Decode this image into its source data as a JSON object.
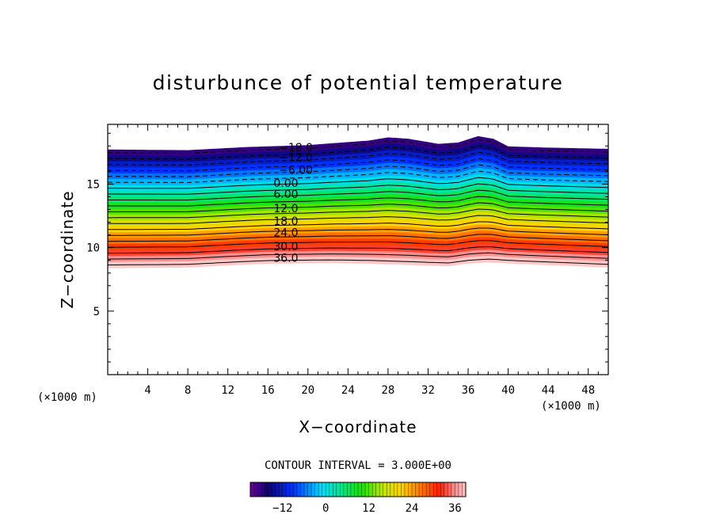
{
  "chart_data": {
    "type": "contour",
    "title": "disturbunce of potential temperature",
    "xlabel": "X−coordinate",
    "ylabel": "Z−coordinate",
    "x_unit_label": "(×1000 m)",
    "y_unit_label": "(×1000 m)",
    "xlim": [
      0,
      50
    ],
    "ylim": [
      0,
      19.7
    ],
    "x_ticks": [
      4,
      8,
      12,
      16,
      20,
      24,
      28,
      32,
      36,
      40,
      44,
      48
    ],
    "y_ticks": [
      5,
      10,
      15
    ],
    "contour_interval_text": "CONTOUR INTERVAL = 3.000E+00",
    "contour_interval": 3.0,
    "levels": [
      -18,
      -15,
      -12,
      -9,
      -6,
      -3,
      0,
      3,
      6,
      9,
      12,
      15,
      18,
      21,
      24,
      27,
      30,
      33,
      36,
      39
    ],
    "contour_labels": [
      {
        "text": "−18.0",
        "value": -18,
        "x": 18.8,
        "z": 17.9
      },
      {
        "text": "−12.0",
        "value": -12,
        "x": 18.8,
        "z": 17.1
      },
      {
        "text": "−6.00",
        "value": -6,
        "x": 18.8,
        "z": 16.1
      },
      {
        "text": "0.00",
        "value": 0,
        "x": 17.8,
        "z": 15.1
      },
      {
        "text": "6.00",
        "value": 6,
        "x": 17.8,
        "z": 14.2
      },
      {
        "text": "12.0",
        "value": 12,
        "x": 17.8,
        "z": 13.1
      },
      {
        "text": "18.0",
        "value": 18,
        "x": 17.8,
        "z": 12.1
      },
      {
        "text": "24.0",
        "value": 24,
        "x": 17.8,
        "z": 11.2
      },
      {
        "text": "30.0",
        "value": 30,
        "x": 17.8,
        "z": 10.1
      },
      {
        "text": "36.0",
        "value": 36,
        "x": 17.8,
        "z": 9.2
      }
    ],
    "field_top_z": [
      [
        0,
        17.7
      ],
      [
        8,
        17.65
      ],
      [
        14,
        17.9
      ],
      [
        20,
        18.05
      ],
      [
        26,
        18.4
      ],
      [
        28,
        18.65
      ],
      [
        30,
        18.55
      ],
      [
        33,
        18.15
      ],
      [
        35,
        18.25
      ],
      [
        37,
        18.75
      ],
      [
        38.5,
        18.55
      ],
      [
        40,
        17.95
      ],
      [
        44,
        17.85
      ],
      [
        50,
        17.75
      ]
    ],
    "field_bottom_z": [
      [
        0,
        8.4
      ],
      [
        8,
        8.45
      ],
      [
        13,
        8.65
      ],
      [
        16,
        8.75
      ],
      [
        22,
        8.8
      ],
      [
        26,
        8.75
      ],
      [
        30,
        8.65
      ],
      [
        34,
        8.55
      ],
      [
        36,
        8.75
      ],
      [
        38,
        8.85
      ],
      [
        42,
        8.7
      ],
      [
        50,
        8.45
      ]
    ],
    "colorbar": {
      "ticks": [
        -12,
        0,
        12,
        24,
        36
      ],
      "tick_labels": [
        "−12",
        "0",
        "12",
        "24",
        "36"
      ],
      "range": [
        -21,
        39
      ]
    },
    "grid": false,
    "legend": "colorbar-bottom"
  }
}
